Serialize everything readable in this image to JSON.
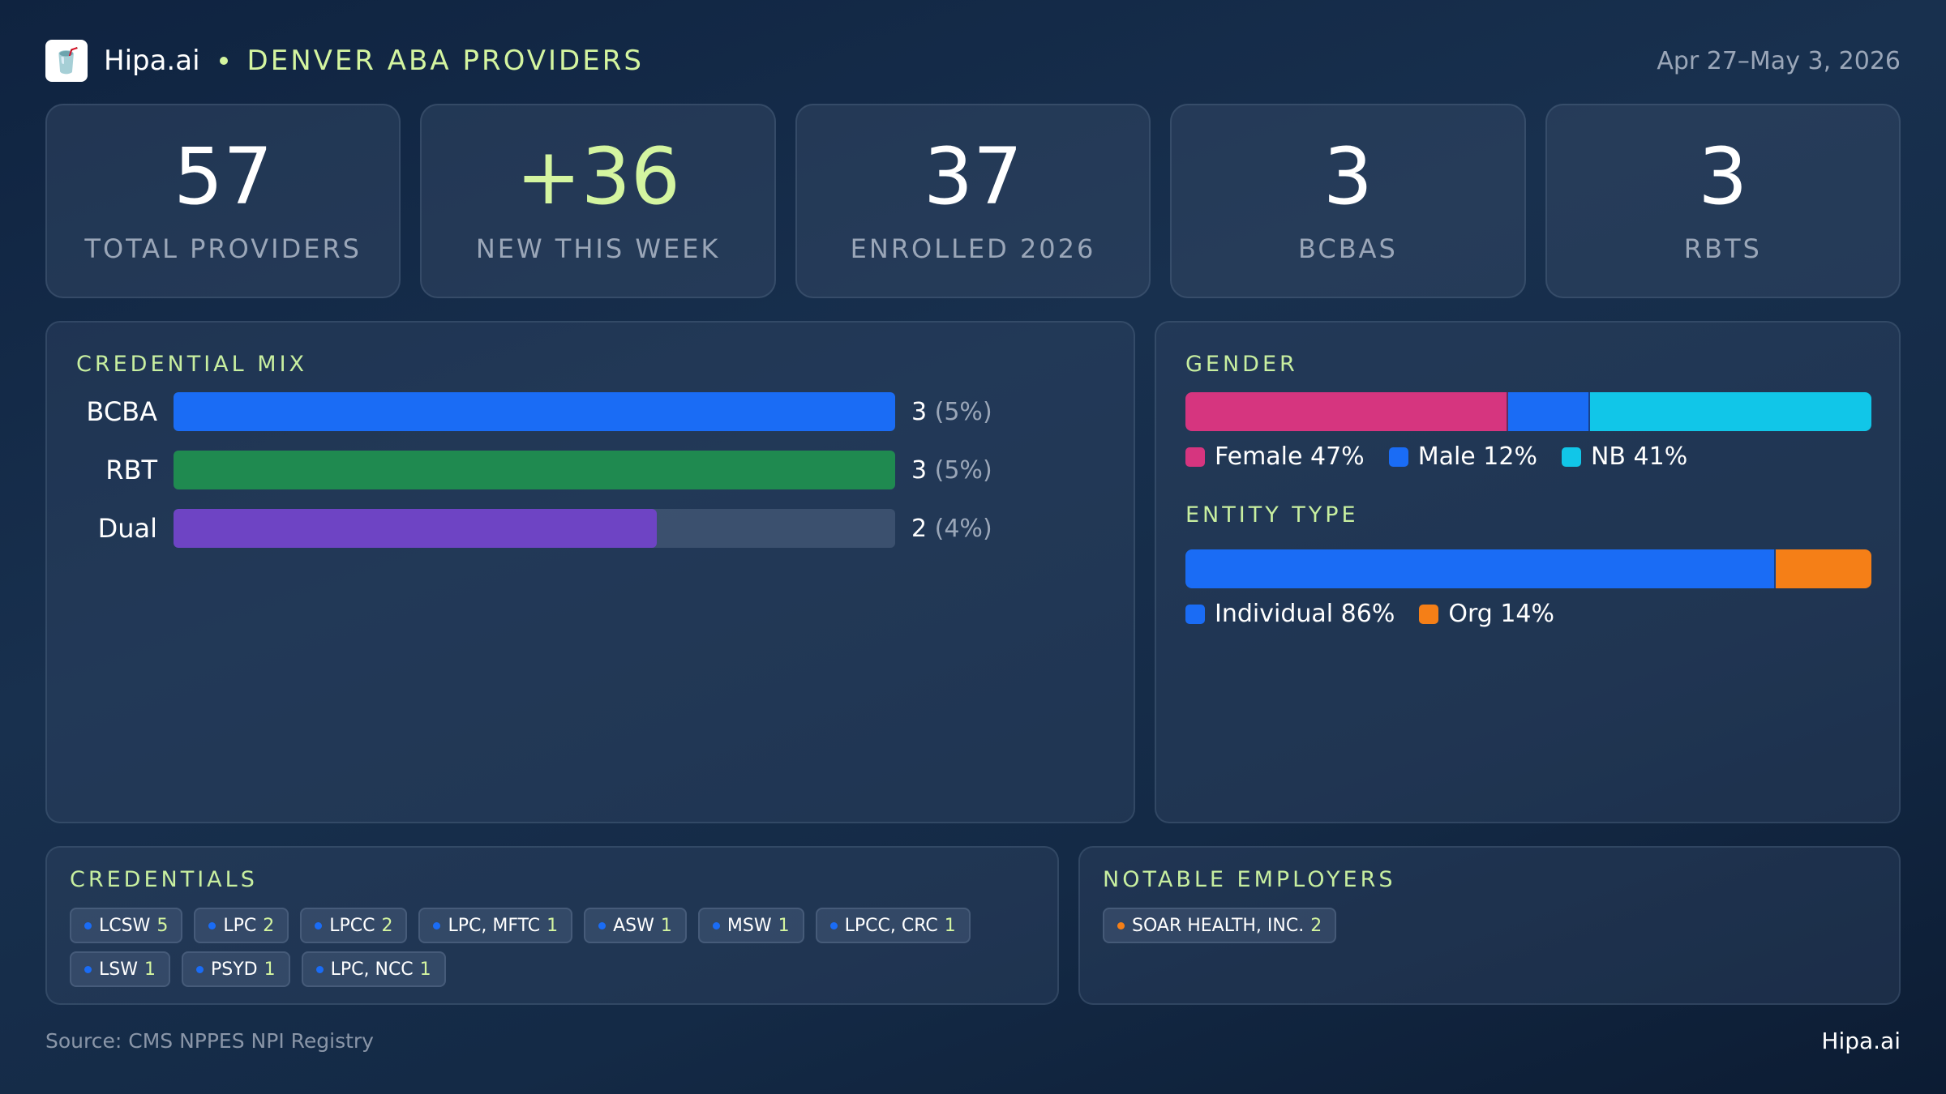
{
  "header": {
    "logo_icon": "drink-cup-icon",
    "brand": "Hipa.ai",
    "title": "DENVER ABA PROVIDERS",
    "date_range": "Apr 27–May 3, 2026"
  },
  "kpis": [
    {
      "value": "57",
      "label": "TOTAL PROVIDERS"
    },
    {
      "value": "+36",
      "label": "NEW THIS WEEK"
    },
    {
      "value": "37",
      "label": "ENROLLED 2026"
    },
    {
      "value": "3",
      "label": "BCBAS"
    },
    {
      "value": "3",
      "label": "RBTS"
    }
  ],
  "credential_mix": {
    "title": "CREDENTIAL MIX",
    "rows": [
      {
        "label": "BCBA",
        "value": "3",
        "pct": "(5%)",
        "fill": 1.0,
        "color": "#1a6cf5"
      },
      {
        "label": "RBT",
        "value": "3",
        "pct": "(5%)",
        "fill": 1.0,
        "color": "#1f8a50"
      },
      {
        "label": "Dual",
        "value": "2",
        "pct": "(4%)",
        "fill": 0.67,
        "color": "#6e44c4"
      }
    ]
  },
  "gender": {
    "title": "GENDER",
    "segments": [
      {
        "label": "Female 47%",
        "share": 47,
        "color": "#d6357f"
      },
      {
        "label": "Male 12%",
        "share": 12,
        "color": "#1a6cf5"
      },
      {
        "label": "NB 41%",
        "share": 41,
        "color": "#11c6e8"
      }
    ]
  },
  "entity_type": {
    "title": "ENTITY TYPE",
    "segments": [
      {
        "label": "Individual 86%",
        "share": 86,
        "color": "#1a6cf5"
      },
      {
        "label": "Org 14%",
        "share": 14,
        "color": "#f57f17"
      }
    ]
  },
  "credentials": {
    "title": "CREDENTIALS",
    "dot_color": "#1a6cf5",
    "chips": [
      {
        "label": "LCSW",
        "count": "5"
      },
      {
        "label": "LPC",
        "count": "2"
      },
      {
        "label": "LPCC",
        "count": "2"
      },
      {
        "label": "LPC, MFTC",
        "count": "1"
      },
      {
        "label": "ASW",
        "count": "1"
      },
      {
        "label": "MSW",
        "count": "1"
      },
      {
        "label": "LPCC, CRC",
        "count": "1"
      },
      {
        "label": "LSW",
        "count": "1"
      },
      {
        "label": "PSYD",
        "count": "1"
      },
      {
        "label": "LPC, NCC",
        "count": "1"
      }
    ]
  },
  "employers": {
    "title": "NOTABLE EMPLOYERS",
    "dot_color": "#f57f17",
    "chips": [
      {
        "label": "SOAR HEALTH, INC.",
        "count": "2"
      }
    ]
  },
  "footer": {
    "source": "Source: CMS NPPES NPI Registry",
    "brand": "Hipa.ai"
  }
}
